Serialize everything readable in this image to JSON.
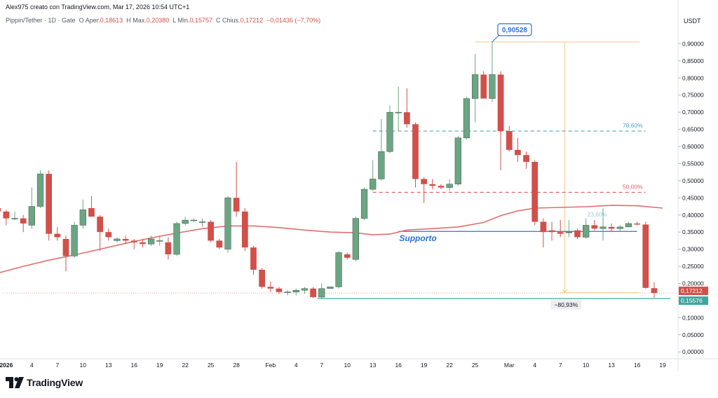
{
  "header": {
    "caption": "Alex975 creato con TradingView.com, Mar 17, 2026 10:54 UTC+1",
    "symbol": "Pippin/Tether · 1D · Gate",
    "open_label": "O",
    "open_name": "Aper.",
    "open_value": "0,18613",
    "high_label": "H",
    "high_name": "Max.",
    "high_value": "0,20380",
    "low_label": "L",
    "low_name": "Min.",
    "low_value": "0,15757",
    "close_label": "C",
    "close_name": "Chius.",
    "close_value": "0,17212",
    "change_value": "−0,01436 (−7,70%)"
  },
  "branding": {
    "logo": "tradingview-logo-icon",
    "name": "TradingView"
  },
  "chart_data": {
    "type": "candlestick",
    "price_unit": "USDT",
    "y_ticks": [
      "0,90000",
      "0,85000",
      "0,80000",
      "0,75000",
      "0,70000",
      "0,65000",
      "0,60000",
      "0,55000",
      "0,50000",
      "0,45000",
      "0,40000",
      "0,35000",
      "0,30000",
      "0,25000",
      "0,20000",
      "0,15000",
      "0,10000",
      "0,05000",
      "0,00000"
    ],
    "y_tick_values": [
      0.9,
      0.85,
      0.8,
      0.75,
      0.7,
      0.65,
      0.6,
      0.55,
      0.5,
      0.45,
      0.4,
      0.35,
      0.3,
      0.25,
      0.2,
      0.15,
      0.1,
      0.05,
      0.0
    ],
    "ylim": [
      -0.02,
      0.95
    ],
    "x_labels": [
      {
        "label": "2026",
        "day": 1,
        "bold": true
      },
      {
        "label": "4",
        "day": 4
      },
      {
        "label": "7",
        "day": 7
      },
      {
        "label": "10",
        "day": 10
      },
      {
        "label": "13",
        "day": 13
      },
      {
        "label": "16",
        "day": 16
      },
      {
        "label": "19",
        "day": 19
      },
      {
        "label": "22",
        "day": 22
      },
      {
        "label": "25",
        "day": 25
      },
      {
        "label": "28",
        "day": 28
      },
      {
        "label": "Feb",
        "day": 32
      },
      {
        "label": "4",
        "day": 35
      },
      {
        "label": "7",
        "day": 38
      },
      {
        "label": "10",
        "day": 41
      },
      {
        "label": "13",
        "day": 44
      },
      {
        "label": "16",
        "day": 47
      },
      {
        "label": "19",
        "day": 50
      },
      {
        "label": "22",
        "day": 53
      },
      {
        "label": "25",
        "day": 56
      },
      {
        "label": "Mar",
        "day": 60
      },
      {
        "label": "4",
        "day": 63
      },
      {
        "label": "7",
        "day": 66
      },
      {
        "label": "10",
        "day": 69
      },
      {
        "label": "13",
        "day": 72
      },
      {
        "label": "16",
        "day": 75
      },
      {
        "label": "19",
        "day": 78
      }
    ],
    "x_range_days": [
      0.6,
      79.8
    ],
    "up_color": "#6ba583",
    "down_color": "#d1504a",
    "candles": [
      {
        "d": 0,
        "o": 0.42,
        "h": 0.425,
        "l": 0.405,
        "c": 0.41
      },
      {
        "d": 1,
        "o": 0.41,
        "h": 0.415,
        "l": 0.37,
        "c": 0.39
      },
      {
        "d": 2,
        "o": 0.39,
        "h": 0.41,
        "l": 0.385,
        "c": 0.39
      },
      {
        "d": 3,
        "o": 0.39,
        "h": 0.4,
        "l": 0.35,
        "c": 0.375
      },
      {
        "d": 4,
        "o": 0.37,
        "h": 0.48,
        "l": 0.36,
        "c": 0.425
      },
      {
        "d": 5,
        "o": 0.425,
        "h": 0.53,
        "l": 0.42,
        "c": 0.52
      },
      {
        "d": 6,
        "o": 0.52,
        "h": 0.53,
        "l": 0.325,
        "c": 0.345
      },
      {
        "d": 7,
        "o": 0.345,
        "h": 0.365,
        "l": 0.325,
        "c": 0.335
      },
      {
        "d": 8,
        "o": 0.33,
        "h": 0.34,
        "l": 0.235,
        "c": 0.28
      },
      {
        "d": 9,
        "o": 0.28,
        "h": 0.38,
        "l": 0.275,
        "c": 0.37
      },
      {
        "d": 10,
        "o": 0.37,
        "h": 0.445,
        "l": 0.36,
        "c": 0.415
      },
      {
        "d": 11,
        "o": 0.42,
        "h": 0.455,
        "l": 0.395,
        "c": 0.395
      },
      {
        "d": 12,
        "o": 0.395,
        "h": 0.4,
        "l": 0.295,
        "c": 0.35
      },
      {
        "d": 13,
        "o": 0.35,
        "h": 0.36,
        "l": 0.325,
        "c": 0.335
      },
      {
        "d": 14,
        "o": 0.325,
        "h": 0.335,
        "l": 0.32,
        "c": 0.33
      },
      {
        "d": 15,
        "o": 0.33,
        "h": 0.34,
        "l": 0.315,
        "c": 0.325
      },
      {
        "d": 16,
        "o": 0.325,
        "h": 0.33,
        "l": 0.3,
        "c": 0.32
      },
      {
        "d": 17,
        "o": 0.32,
        "h": 0.33,
        "l": 0.305,
        "c": 0.315
      },
      {
        "d": 18,
        "o": 0.315,
        "h": 0.34,
        "l": 0.31,
        "c": 0.33
      },
      {
        "d": 19,
        "o": 0.325,
        "h": 0.34,
        "l": 0.31,
        "c": 0.325
      },
      {
        "d": 20,
        "o": 0.32,
        "h": 0.335,
        "l": 0.27,
        "c": 0.285
      },
      {
        "d": 21,
        "o": 0.285,
        "h": 0.38,
        "l": 0.28,
        "c": 0.375
      },
      {
        "d": 22,
        "o": 0.375,
        "h": 0.395,
        "l": 0.37,
        "c": 0.385
      },
      {
        "d": 23,
        "o": 0.385,
        "h": 0.39,
        "l": 0.38,
        "c": 0.385
      },
      {
        "d": 24,
        "o": 0.38,
        "h": 0.39,
        "l": 0.365,
        "c": 0.38
      },
      {
        "d": 25,
        "o": 0.38,
        "h": 0.385,
        "l": 0.32,
        "c": 0.325
      },
      {
        "d": 26,
        "o": 0.325,
        "h": 0.33,
        "l": 0.3,
        "c": 0.305
      },
      {
        "d": 27,
        "o": 0.3,
        "h": 0.455,
        "l": 0.29,
        "c": 0.45
      },
      {
        "d": 28,
        "o": 0.45,
        "h": 0.555,
        "l": 0.395,
        "c": 0.41
      },
      {
        "d": 29,
        "o": 0.41,
        "h": 0.42,
        "l": 0.295,
        "c": 0.305
      },
      {
        "d": 30,
        "o": 0.305,
        "h": 0.31,
        "l": 0.225,
        "c": 0.24
      },
      {
        "d": 31,
        "o": 0.24,
        "h": 0.245,
        "l": 0.185,
        "c": 0.19
      },
      {
        "d": 32,
        "o": 0.19,
        "h": 0.205,
        "l": 0.175,
        "c": 0.185
      },
      {
        "d": 33,
        "o": 0.185,
        "h": 0.19,
        "l": 0.17,
        "c": 0.175
      },
      {
        "d": 34,
        "o": 0.175,
        "h": 0.18,
        "l": 0.165,
        "c": 0.175
      },
      {
        "d": 35,
        "o": 0.175,
        "h": 0.185,
        "l": 0.165,
        "c": 0.18
      },
      {
        "d": 36,
        "o": 0.18,
        "h": 0.19,
        "l": 0.17,
        "c": 0.185
      },
      {
        "d": 37,
        "o": 0.185,
        "h": 0.19,
        "l": 0.157,
        "c": 0.16
      },
      {
        "d": 38,
        "o": 0.16,
        "h": 0.2,
        "l": 0.155,
        "c": 0.185
      },
      {
        "d": 39,
        "o": 0.185,
        "h": 0.19,
        "l": 0.185,
        "c": 0.19
      },
      {
        "d": 40,
        "o": 0.19,
        "h": 0.295,
        "l": 0.185,
        "c": 0.29
      },
      {
        "d": 41,
        "o": 0.285,
        "h": 0.29,
        "l": 0.27,
        "c": 0.275
      },
      {
        "d": 42,
        "o": 0.27,
        "h": 0.395,
        "l": 0.265,
        "c": 0.39
      },
      {
        "d": 43,
        "o": 0.39,
        "h": 0.48,
        "l": 0.385,
        "c": 0.475
      },
      {
        "d": 44,
        "o": 0.475,
        "h": 0.56,
        "l": 0.47,
        "c": 0.505
      },
      {
        "d": 45,
        "o": 0.505,
        "h": 0.68,
        "l": 0.5,
        "c": 0.585
      },
      {
        "d": 46,
        "o": 0.585,
        "h": 0.72,
        "l": 0.58,
        "c": 0.7
      },
      {
        "d": 47,
        "o": 0.7,
        "h": 0.775,
        "l": 0.645,
        "c": 0.7
      },
      {
        "d": 48,
        "o": 0.7,
        "h": 0.77,
        "l": 0.655,
        "c": 0.665
      },
      {
        "d": 49,
        "o": 0.665,
        "h": 0.67,
        "l": 0.48,
        "c": 0.505
      },
      {
        "d": 50,
        "o": 0.505,
        "h": 0.51,
        "l": 0.435,
        "c": 0.49
      },
      {
        "d": 51,
        "o": 0.49,
        "h": 0.505,
        "l": 0.475,
        "c": 0.485
      },
      {
        "d": 52,
        "o": 0.485,
        "h": 0.49,
        "l": 0.475,
        "c": 0.48
      },
      {
        "d": 53,
        "o": 0.48,
        "h": 0.505,
        "l": 0.47,
        "c": 0.49
      },
      {
        "d": 54,
        "o": 0.49,
        "h": 0.63,
        "l": 0.485,
        "c": 0.625
      },
      {
        "d": 55,
        "o": 0.625,
        "h": 0.745,
        "l": 0.62,
        "c": 0.74
      },
      {
        "d": 56,
        "o": 0.74,
        "h": 0.87,
        "l": 0.67,
        "c": 0.81
      },
      {
        "d": 57,
        "o": 0.81,
        "h": 0.82,
        "l": 0.74,
        "c": 0.74
      },
      {
        "d": 58,
        "o": 0.74,
        "h": 0.90528,
        "l": 0.73,
        "c": 0.81
      },
      {
        "d": 59,
        "o": 0.81,
        "h": 0.82,
        "l": 0.53,
        "c": 0.645
      },
      {
        "d": 60,
        "o": 0.645,
        "h": 0.66,
        "l": 0.585,
        "c": 0.59
      },
      {
        "d": 61,
        "o": 0.59,
        "h": 0.625,
        "l": 0.555,
        "c": 0.575
      },
      {
        "d": 62,
        "o": 0.575,
        "h": 0.585,
        "l": 0.535,
        "c": 0.555
      },
      {
        "d": 63,
        "o": 0.555,
        "h": 0.56,
        "l": 0.37,
        "c": 0.38
      },
      {
        "d": 64,
        "o": 0.38,
        "h": 0.39,
        "l": 0.305,
        "c": 0.35
      },
      {
        "d": 65,
        "o": 0.355,
        "h": 0.38,
        "l": 0.325,
        "c": 0.35
      },
      {
        "d": 66,
        "o": 0.35,
        "h": 0.385,
        "l": 0.335,
        "c": 0.345
      },
      {
        "d": 67,
        "o": 0.35,
        "h": 0.385,
        "l": 0.335,
        "c": 0.35
      },
      {
        "d": 68,
        "o": 0.355,
        "h": 0.36,
        "l": 0.33,
        "c": 0.335
      },
      {
        "d": 69,
        "o": 0.335,
        "h": 0.39,
        "l": 0.33,
        "c": 0.37
      },
      {
        "d": 70,
        "o": 0.37,
        "h": 0.385,
        "l": 0.355,
        "c": 0.36
      },
      {
        "d": 71,
        "o": 0.36,
        "h": 0.42,
        "l": 0.325,
        "c": 0.365
      },
      {
        "d": 72,
        "o": 0.365,
        "h": 0.375,
        "l": 0.35,
        "c": 0.36
      },
      {
        "d": 73,
        "o": 0.36,
        "h": 0.37,
        "l": 0.35,
        "c": 0.365
      },
      {
        "d": 74,
        "o": 0.365,
        "h": 0.38,
        "l": 0.365,
        "c": 0.375
      },
      {
        "d": 75,
        "o": 0.375,
        "h": 0.38,
        "l": 0.37,
        "c": 0.372
      },
      {
        "d": 76,
        "o": 0.372,
        "h": 0.38,
        "l": 0.185,
        "c": 0.187
      },
      {
        "d": 77,
        "o": 0.18613,
        "h": 0.2038,
        "l": 0.15757,
        "c": 0.17212
      }
    ],
    "moving_average": {
      "color": "#e36d6d",
      "points": [
        [
          0,
          0.23
        ],
        [
          3,
          0.25
        ],
        [
          6,
          0.268
        ],
        [
          9,
          0.283
        ],
        [
          12,
          0.3
        ],
        [
          15,
          0.317
        ],
        [
          18,
          0.333
        ],
        [
          21,
          0.347
        ],
        [
          24,
          0.36
        ],
        [
          27,
          0.368
        ],
        [
          30,
          0.368
        ],
        [
          33,
          0.363
        ],
        [
          36,
          0.356
        ],
        [
          39,
          0.35
        ],
        [
          42,
          0.348
        ],
        [
          44,
          0.342
        ],
        [
          46,
          0.344
        ],
        [
          48,
          0.356
        ],
        [
          51,
          0.36
        ],
        [
          54,
          0.365
        ],
        [
          57,
          0.378
        ],
        [
          59,
          0.398
        ],
        [
          61,
          0.412
        ],
        [
          63,
          0.42
        ],
        [
          66,
          0.422
        ],
        [
          69,
          0.424
        ],
        [
          72,
          0.428
        ],
        [
          75,
          0.427
        ],
        [
          78,
          0.42
        ]
      ]
    },
    "horizontal_levels": [
      {
        "name": "fib-786-line",
        "value": 0.645,
        "from_day": 44,
        "to_day": 76,
        "color": "#4ba3d1",
        "dashed": true,
        "label": "78,60%"
      },
      {
        "name": "fib-500-line",
        "value": 0.466,
        "from_day": 44,
        "to_day": 76,
        "color": "#e06464",
        "dashed": true,
        "label": "50,00%"
      },
      {
        "name": "support-line",
        "value": 0.352,
        "from_day": 47,
        "to_day": 75,
        "color": "#2b71d9",
        "dashed": false,
        "label": "Supporto"
      },
      {
        "name": "low-level-line",
        "value": 0.15576,
        "from_day": 37.5,
        "to_day": 78.9,
        "color": "#3ea89e",
        "dashed": false,
        "label": ""
      }
    ],
    "faded_fib_label": "23,60%",
    "peak_annotation": {
      "label": "0,90528",
      "day": 58,
      "price": 0.90528
    },
    "measure": {
      "from_price": 0.90528,
      "to_price": 0.1728,
      "day": 66.5,
      "label": "−80,93%",
      "color": "#f5c48a"
    },
    "price_tags": [
      {
        "value": 0.17212,
        "label": "0,17212",
        "color": "#d1504a"
      },
      {
        "value": 0.15576,
        "label": "0,15576",
        "color": "#3ea89e"
      }
    ]
  }
}
